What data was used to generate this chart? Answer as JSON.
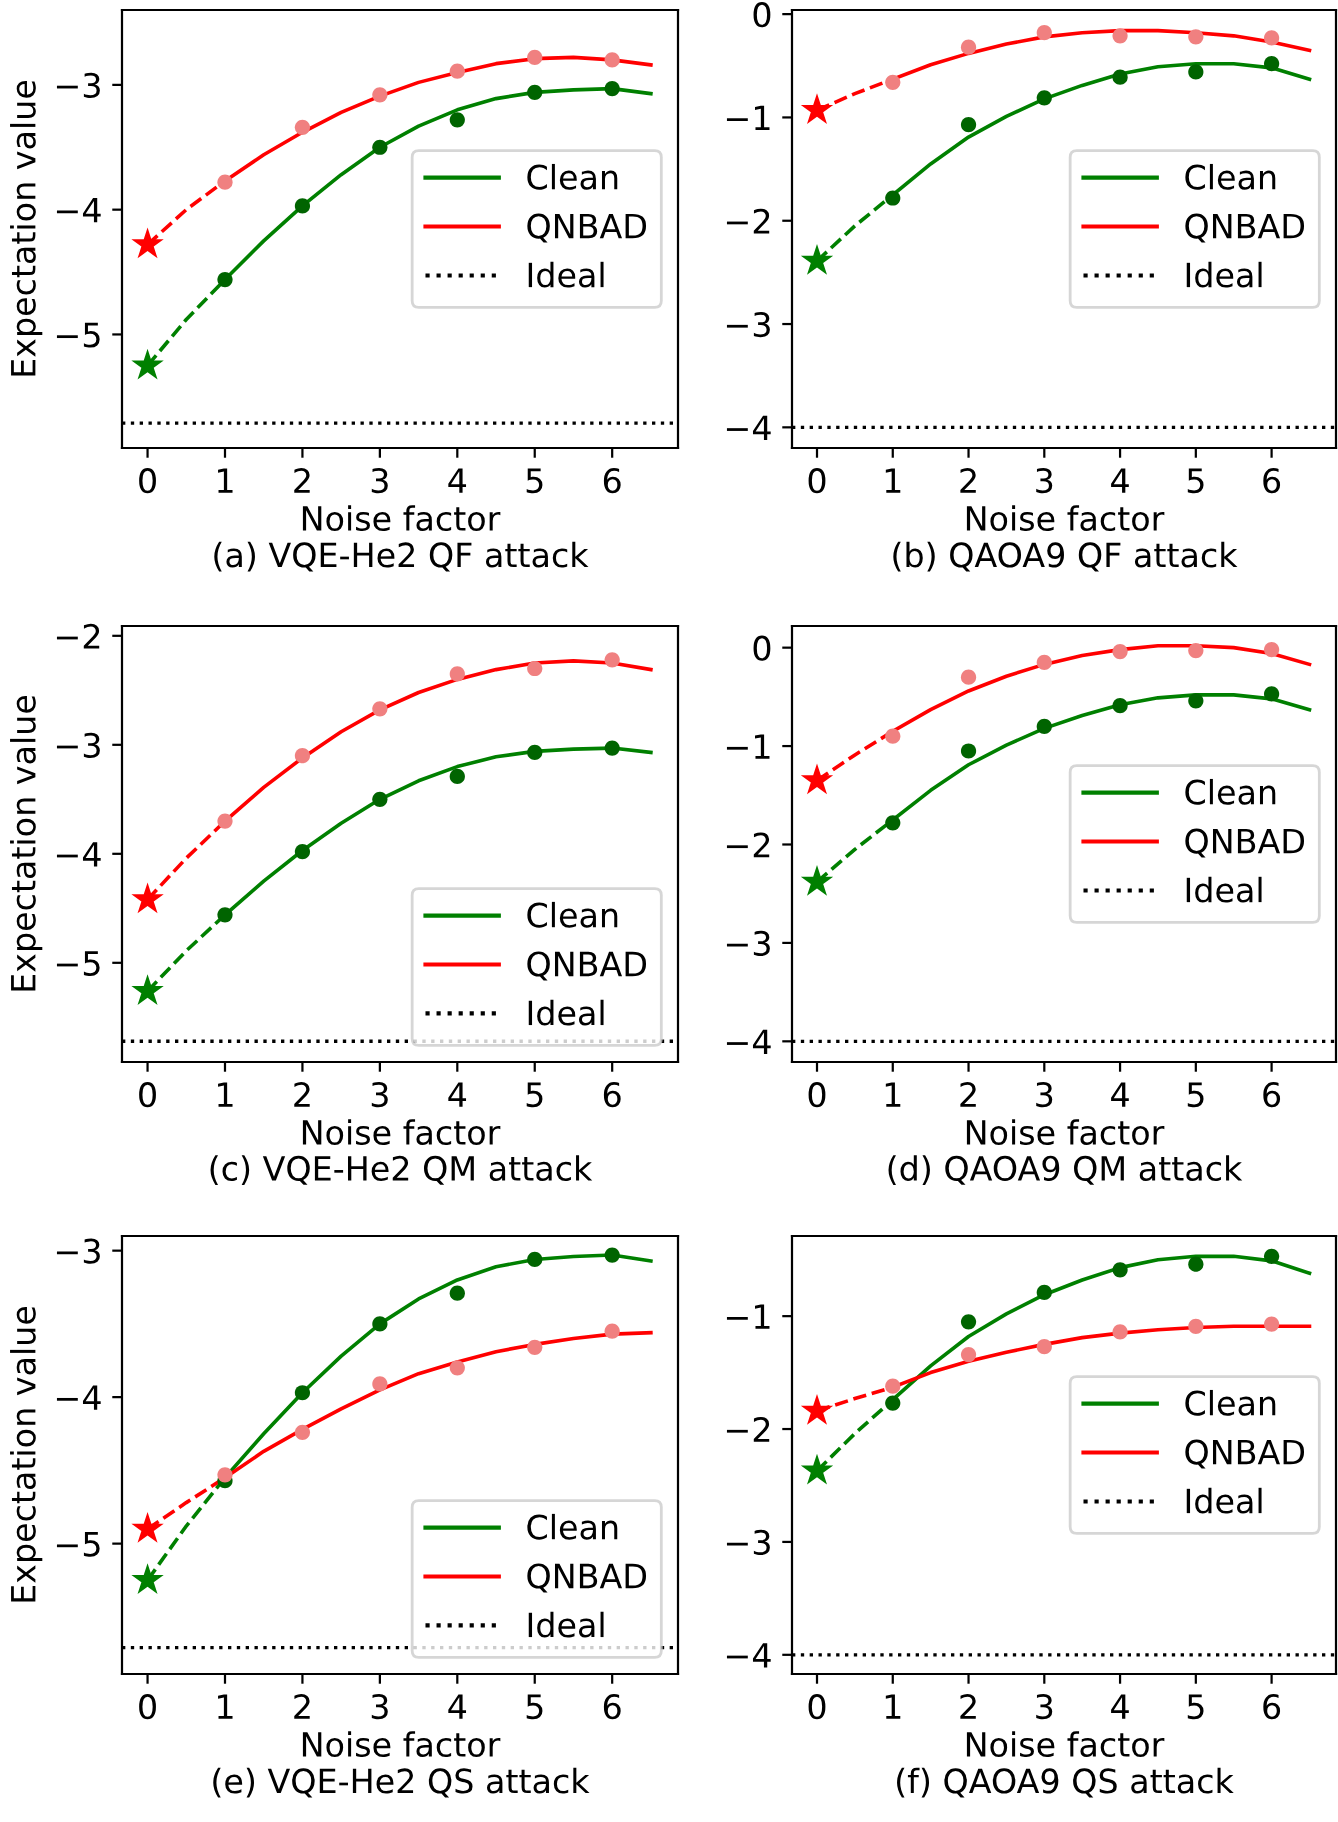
{
  "chart_data": [
    {
      "type": "line",
      "title": "(a) VQE-He2 QF attack",
      "xlabel": "Noise factor",
      "ylabel": "Expectation value",
      "xlim": [
        -0.33,
        6.85
      ],
      "ylim": [
        -5.91,
        -2.4
      ],
      "xticks": [
        0,
        1,
        2,
        3,
        4,
        5,
        6
      ],
      "yticks": [
        {
          "value": -5,
          "label": "−5"
        },
        {
          "value": -4,
          "label": "−4"
        },
        {
          "value": -3,
          "label": "−3"
        }
      ],
      "legend": "center right",
      "grid": false,
      "ref_lines": [
        {
          "axis": "y",
          "value": -5.71,
          "label": "Ideal",
          "color": "#000000",
          "line_style": "dotted"
        }
      ],
      "series": [
        {
          "type": "line",
          "name": "Clean",
          "color": "#008000",
          "line_style": "solid",
          "x": [
            1,
            1.5,
            2,
            2.5,
            3,
            3.5,
            4,
            4.5,
            5,
            5.5,
            6,
            6.5
          ],
          "values": [
            -4.56,
            -4.25,
            -3.97,
            -3.72,
            -3.5,
            -3.33,
            -3.2,
            -3.11,
            -3.06,
            -3.04,
            -3.03,
            -3.07
          ]
        },
        {
          "type": "line",
          "color": "#008000",
          "line_style": "dashed",
          "x": [
            0,
            0.5,
            1
          ],
          "values": [
            -5.25,
            -4.88,
            -4.56
          ]
        },
        {
          "type": "scatter",
          "color": "#006400",
          "marker": "circle",
          "x": [
            1,
            2,
            3,
            4,
            5,
            6
          ],
          "values": [
            -4.56,
            -3.97,
            -3.5,
            -3.28,
            -3.06,
            -3.03
          ]
        },
        {
          "type": "scatter",
          "color": "#008000",
          "marker": "star",
          "x": [
            0
          ],
          "values": [
            -5.25
          ]
        },
        {
          "type": "line",
          "name": "QNBAD",
          "color": "#ff0000",
          "line_style": "solid",
          "x": [
            1,
            1.5,
            2,
            2.5,
            3,
            3.5,
            4,
            4.5,
            5,
            5.5,
            6,
            6.5
          ],
          "values": [
            -3.77,
            -3.56,
            -3.38,
            -3.22,
            -3.09,
            -2.98,
            -2.9,
            -2.83,
            -2.79,
            -2.78,
            -2.8,
            -2.84
          ]
        },
        {
          "type": "line",
          "color": "#ff0000",
          "line_style": "dashed",
          "x": [
            0,
            0.5,
            1
          ],
          "values": [
            -4.28,
            -4.0,
            -3.77
          ]
        },
        {
          "type": "scatter",
          "color": "#f08080",
          "marker": "circle",
          "x": [
            1,
            2,
            3,
            4,
            5,
            6
          ],
          "values": [
            -3.78,
            -3.34,
            -3.08,
            -2.89,
            -2.78,
            -2.8
          ]
        },
        {
          "type": "scatter",
          "color": "#ff0000",
          "marker": "star",
          "x": [
            0
          ],
          "values": [
            -4.28
          ]
        }
      ]
    },
    {
      "type": "line",
      "title": "(b) QAOA9 QF attack",
      "xlabel": "Noise factor",
      "xlim": [
        -0.33,
        6.85
      ],
      "ylim": [
        -4.2,
        0.04
      ],
      "xticks": [
        0,
        1,
        2,
        3,
        4,
        5,
        6
      ],
      "yticks": [
        {
          "value": -4,
          "label": "−4"
        },
        {
          "value": -3,
          "label": "−3"
        },
        {
          "value": -2,
          "label": "−2"
        },
        {
          "value": -1,
          "label": "−1"
        },
        0
      ],
      "legend": "center right",
      "grid": false,
      "ref_lines": [
        {
          "axis": "y",
          "value": -4,
          "label": "Ideal",
          "color": "#000000",
          "line_style": "dotted"
        }
      ],
      "series": [
        {
          "type": "line",
          "name": "Clean",
          "color": "#008000",
          "line_style": "solid",
          "x": [
            1,
            1.5,
            2,
            2.5,
            3,
            3.5,
            4,
            4.5,
            5,
            5.5,
            6,
            6.5
          ],
          "values": [
            -1.75,
            -1.45,
            -1.19,
            -0.99,
            -0.82,
            -0.69,
            -0.58,
            -0.51,
            -0.48,
            -0.48,
            -0.52,
            -0.63
          ]
        },
        {
          "type": "line",
          "color": "#008000",
          "line_style": "dashed",
          "x": [
            0,
            0.5,
            1
          ],
          "values": [
            -2.39,
            -2.05,
            -1.75
          ]
        },
        {
          "type": "scatter",
          "color": "#006400",
          "marker": "circle",
          "x": [
            1,
            2,
            3,
            4,
            5,
            6
          ],
          "values": [
            -1.78,
            -1.07,
            -0.81,
            -0.61,
            -0.56,
            -0.48
          ]
        },
        {
          "type": "scatter",
          "color": "#008000",
          "marker": "star",
          "x": [
            0
          ],
          "values": [
            -2.39
          ]
        },
        {
          "type": "line",
          "name": "QNBAD",
          "color": "#ff0000",
          "line_style": "solid",
          "x": [
            1,
            1.5,
            2,
            2.5,
            3,
            3.5,
            4,
            4.5,
            5,
            5.5,
            6,
            6.5
          ],
          "values": [
            -0.63,
            -0.49,
            -0.38,
            -0.29,
            -0.22,
            -0.18,
            -0.16,
            -0.16,
            -0.18,
            -0.21,
            -0.27,
            -0.35
          ]
        },
        {
          "type": "line",
          "color": "#ff0000",
          "line_style": "dashed",
          "x": [
            0,
            0.5,
            1
          ],
          "values": [
            -0.93,
            -0.77,
            -0.63
          ]
        },
        {
          "type": "scatter",
          "color": "#f08080",
          "marker": "circle",
          "x": [
            1,
            2,
            3,
            4,
            5,
            6
          ],
          "values": [
            -0.66,
            -0.32,
            -0.18,
            -0.21,
            -0.22,
            -0.23
          ]
        },
        {
          "type": "scatter",
          "color": "#ff0000",
          "marker": "star",
          "x": [
            0
          ],
          "values": [
            -0.93
          ]
        }
      ]
    },
    {
      "type": "line",
      "title": "(c) VQE-He2 QM attack",
      "xlabel": "Noise factor",
      "ylabel": "Expectation value",
      "xlim": [
        -0.33,
        6.85
      ],
      "ylim": [
        -5.91,
        -1.91
      ],
      "xticks": [
        0,
        1,
        2,
        3,
        4,
        5,
        6
      ],
      "yticks": [
        {
          "value": -5,
          "label": "−5"
        },
        {
          "value": -4,
          "label": "−4"
        },
        {
          "value": -3,
          "label": "−3"
        },
        {
          "value": -2,
          "label": "−2"
        }
      ],
      "legend": "lower right",
      "grid": false,
      "ref_lines": [
        {
          "axis": "y",
          "value": -5.72,
          "label": "Ideal",
          "color": "#000000",
          "line_style": "dotted"
        }
      ],
      "series": [
        {
          "type": "line",
          "name": "Clean",
          "color": "#008000",
          "line_style": "solid",
          "x": [
            1,
            1.5,
            2,
            2.5,
            3,
            3.5,
            4,
            4.5,
            5,
            5.5,
            6,
            6.5
          ],
          "values": [
            -4.56,
            -4.25,
            -3.97,
            -3.72,
            -3.5,
            -3.33,
            -3.2,
            -3.11,
            -3.06,
            -3.04,
            -3.03,
            -3.07
          ]
        },
        {
          "type": "line",
          "color": "#008000",
          "line_style": "dashed",
          "x": [
            0,
            0.5,
            1
          ],
          "values": [
            -5.26,
            -4.89,
            -4.56
          ]
        },
        {
          "type": "scatter",
          "color": "#006400",
          "marker": "circle",
          "x": [
            1,
            2,
            3,
            4,
            5,
            6
          ],
          "values": [
            -4.56,
            -3.98,
            -3.5,
            -3.29,
            -3.07,
            -3.03
          ]
        },
        {
          "type": "scatter",
          "color": "#008000",
          "marker": "star",
          "x": [
            0
          ],
          "values": [
            -5.26
          ]
        },
        {
          "type": "line",
          "name": "QNBAD",
          "color": "#ff0000",
          "line_style": "solid",
          "x": [
            1,
            1.5,
            2,
            2.5,
            3,
            3.5,
            4,
            4.5,
            5,
            5.5,
            6,
            6.5
          ],
          "values": [
            -3.7,
            -3.39,
            -3.12,
            -2.88,
            -2.68,
            -2.52,
            -2.4,
            -2.31,
            -2.25,
            -2.23,
            -2.25,
            -2.31
          ]
        },
        {
          "type": "line",
          "color": "#ff0000",
          "line_style": "dashed",
          "x": [
            0,
            0.5,
            1
          ],
          "values": [
            -4.42,
            -4.04,
            -3.7
          ]
        },
        {
          "type": "scatter",
          "color": "#f08080",
          "marker": "circle",
          "x": [
            1,
            2,
            3,
            4,
            5,
            6
          ],
          "values": [
            -3.7,
            -3.1,
            -2.67,
            -2.35,
            -2.3,
            -2.22
          ]
        },
        {
          "type": "scatter",
          "color": "#ff0000",
          "marker": "star",
          "x": [
            0
          ],
          "values": [
            -4.42
          ]
        }
      ]
    },
    {
      "type": "line",
      "title": "(d) QAOA9 QM attack",
      "xlabel": "Noise factor",
      "xlim": [
        -0.33,
        6.85
      ],
      "ylim": [
        -4.21,
        0.22
      ],
      "xticks": [
        0,
        1,
        2,
        3,
        4,
        5,
        6
      ],
      "yticks": [
        {
          "value": -4,
          "label": "−4"
        },
        {
          "value": -3,
          "label": "−3"
        },
        {
          "value": -2,
          "label": "−2"
        },
        {
          "value": -1,
          "label": "−1"
        },
        0
      ],
      "legend": "center right",
      "grid": false,
      "ref_lines": [
        {
          "axis": "y",
          "value": -4,
          "label": "Ideal",
          "color": "#000000",
          "line_style": "dotted"
        }
      ],
      "series": [
        {
          "type": "line",
          "name": "Clean",
          "color": "#008000",
          "line_style": "solid",
          "x": [
            1,
            1.5,
            2,
            2.5,
            3,
            3.5,
            4,
            4.5,
            5,
            5.5,
            6,
            6.5
          ],
          "values": [
            -1.75,
            -1.45,
            -1.19,
            -0.99,
            -0.82,
            -0.69,
            -0.58,
            -0.51,
            -0.48,
            -0.48,
            -0.52,
            -0.63
          ]
        },
        {
          "type": "line",
          "color": "#008000",
          "line_style": "dashed",
          "x": [
            0,
            0.5,
            1
          ],
          "values": [
            -2.38,
            -2.05,
            -1.75
          ]
        },
        {
          "type": "scatter",
          "color": "#006400",
          "marker": "circle",
          "x": [
            1,
            2,
            3,
            4,
            5,
            6
          ],
          "values": [
            -1.78,
            -1.05,
            -0.8,
            -0.59,
            -0.54,
            -0.47
          ]
        },
        {
          "type": "scatter",
          "color": "#008000",
          "marker": "star",
          "x": [
            0
          ],
          "values": [
            -2.38
          ]
        },
        {
          "type": "line",
          "name": "QNBAD",
          "color": "#ff0000",
          "line_style": "solid",
          "x": [
            1,
            1.5,
            2,
            2.5,
            3,
            3.5,
            4,
            4.5,
            5,
            5.5,
            6,
            6.5
          ],
          "values": [
            -0.85,
            -0.63,
            -0.44,
            -0.29,
            -0.17,
            -0.08,
            -0.02,
            0.02,
            0.02,
            0.0,
            -0.06,
            -0.17
          ]
        },
        {
          "type": "line",
          "color": "#ff0000",
          "line_style": "dashed",
          "x": [
            0,
            0.5,
            1
          ],
          "values": [
            -1.35,
            -1.09,
            -0.85
          ]
        },
        {
          "type": "scatter",
          "color": "#f08080",
          "marker": "circle",
          "x": [
            1,
            2,
            3,
            4,
            5,
            6
          ],
          "values": [
            -0.9,
            -0.3,
            -0.15,
            -0.04,
            -0.03,
            -0.02
          ]
        },
        {
          "type": "scatter",
          "color": "#ff0000",
          "marker": "star",
          "x": [
            0
          ],
          "values": [
            -1.35
          ]
        }
      ]
    },
    {
      "type": "line",
      "title": "(e) VQE-He2 QS attack",
      "xlabel": "Noise factor",
      "ylabel": "Expectation value",
      "xlim": [
        -0.33,
        6.85
      ],
      "ylim": [
        -5.89,
        -2.9
      ],
      "xticks": [
        0,
        1,
        2,
        3,
        4,
        5,
        6
      ],
      "yticks": [
        {
          "value": -5,
          "label": "−5"
        },
        {
          "value": -4,
          "label": "−4"
        },
        {
          "value": -3,
          "label": "−3"
        }
      ],
      "legend": "lower right",
      "grid": false,
      "ref_lines": [
        {
          "axis": "y",
          "value": -5.71,
          "label": "Ideal",
          "color": "#000000",
          "line_style": "dotted"
        }
      ],
      "series": [
        {
          "type": "line",
          "name": "Clean",
          "color": "#008000",
          "line_style": "solid",
          "x": [
            1,
            1.5,
            2,
            2.5,
            3,
            3.5,
            4,
            4.5,
            5,
            5.5,
            6,
            6.5
          ],
          "values": [
            -4.55,
            -4.25,
            -3.97,
            -3.72,
            -3.5,
            -3.33,
            -3.2,
            -3.11,
            -3.06,
            -3.04,
            -3.03,
            -3.07
          ]
        },
        {
          "type": "line",
          "color": "#008000",
          "line_style": "dashed",
          "x": [
            0,
            0.5,
            1
          ],
          "values": [
            -5.25,
            -4.88,
            -4.55
          ]
        },
        {
          "type": "scatter",
          "color": "#006400",
          "marker": "circle",
          "x": [
            1,
            2,
            3,
            4,
            5,
            6
          ],
          "values": [
            -4.57,
            -3.97,
            -3.5,
            -3.29,
            -3.06,
            -3.03
          ]
        },
        {
          "type": "scatter",
          "color": "#008000",
          "marker": "star",
          "x": [
            0
          ],
          "values": [
            -5.25
          ]
        },
        {
          "type": "line",
          "name": "QNBAD",
          "color": "#ff0000",
          "line_style": "solid",
          "x": [
            1,
            1.5,
            2,
            2.5,
            3,
            3.5,
            4,
            4.5,
            5,
            5.5,
            6,
            6.5
          ],
          "values": [
            -4.55,
            -4.37,
            -4.22,
            -4.08,
            -3.95,
            -3.84,
            -3.76,
            -3.69,
            -3.64,
            -3.6,
            -3.57,
            -3.56
          ]
        },
        {
          "type": "line",
          "color": "#ff0000",
          "line_style": "dashed",
          "x": [
            0,
            0.5,
            1
          ],
          "values": [
            -4.9,
            -4.72,
            -4.55
          ]
        },
        {
          "type": "scatter",
          "color": "#f08080",
          "marker": "circle",
          "x": [
            1,
            2,
            3,
            4,
            5,
            6
          ],
          "values": [
            -4.53,
            -4.24,
            -3.91,
            -3.8,
            -3.66,
            -3.55
          ]
        },
        {
          "type": "scatter",
          "color": "#ff0000",
          "marker": "star",
          "x": [
            0
          ],
          "values": [
            -4.9
          ]
        }
      ]
    },
    {
      "type": "line",
      "title": "(f) QAOA9 QS attack",
      "xlabel": "Noise factor",
      "xlim": [
        -0.33,
        6.85
      ],
      "ylim": [
        -4.17,
        -0.29
      ],
      "xticks": [
        0,
        1,
        2,
        3,
        4,
        5,
        6
      ],
      "yticks": [
        {
          "value": -4,
          "label": "−4"
        },
        {
          "value": -3,
          "label": "−3"
        },
        {
          "value": -2,
          "label": "−2"
        },
        {
          "value": -1,
          "label": "−1"
        }
      ],
      "legend": "center right",
      "grid": false,
      "ref_lines": [
        {
          "axis": "y",
          "value": -4,
          "label": "Ideal",
          "color": "#000000",
          "line_style": "dotted"
        }
      ],
      "series": [
        {
          "type": "line",
          "name": "Clean",
          "color": "#008000",
          "line_style": "solid",
          "x": [
            1,
            1.5,
            2,
            2.5,
            3,
            3.5,
            4,
            4.5,
            5,
            5.5,
            6,
            6.5
          ],
          "values": [
            -1.74,
            -1.44,
            -1.18,
            -0.98,
            -0.81,
            -0.68,
            -0.57,
            -0.5,
            -0.47,
            -0.47,
            -0.51,
            -0.62
          ]
        },
        {
          "type": "line",
          "color": "#008000",
          "line_style": "dashed",
          "x": [
            0,
            0.5,
            1
          ],
          "values": [
            -2.37,
            -2.04,
            -1.74
          ]
        },
        {
          "type": "scatter",
          "color": "#006400",
          "marker": "circle",
          "x": [
            1,
            2,
            3,
            4,
            5,
            6
          ],
          "values": [
            -1.77,
            -1.05,
            -0.79,
            -0.59,
            -0.54,
            -0.47
          ]
        },
        {
          "type": "scatter",
          "color": "#008000",
          "marker": "star",
          "x": [
            0
          ],
          "values": [
            -2.37
          ]
        },
        {
          "type": "line",
          "name": "QNBAD",
          "color": "#ff0000",
          "line_style": "solid",
          "x": [
            1,
            1.5,
            2,
            2.5,
            3,
            3.5,
            4,
            4.5,
            5,
            5.5,
            6,
            6.5
          ],
          "values": [
            -1.63,
            -1.5,
            -1.4,
            -1.32,
            -1.25,
            -1.19,
            -1.15,
            -1.12,
            -1.1,
            -1.09,
            -1.09,
            -1.09
          ]
        },
        {
          "type": "line",
          "color": "#ff0000",
          "line_style": "dashed",
          "x": [
            0,
            0.5,
            1
          ],
          "values": [
            -1.84,
            -1.73,
            -1.63
          ]
        },
        {
          "type": "scatter",
          "color": "#f08080",
          "marker": "circle",
          "x": [
            1,
            2,
            3,
            4,
            5,
            6
          ],
          "values": [
            -1.62,
            -1.34,
            -1.27,
            -1.14,
            -1.09,
            -1.07
          ]
        },
        {
          "type": "scatter",
          "color": "#ff0000",
          "marker": "star",
          "x": [
            0
          ],
          "values": [
            -1.84
          ]
        }
      ]
    }
  ]
}
